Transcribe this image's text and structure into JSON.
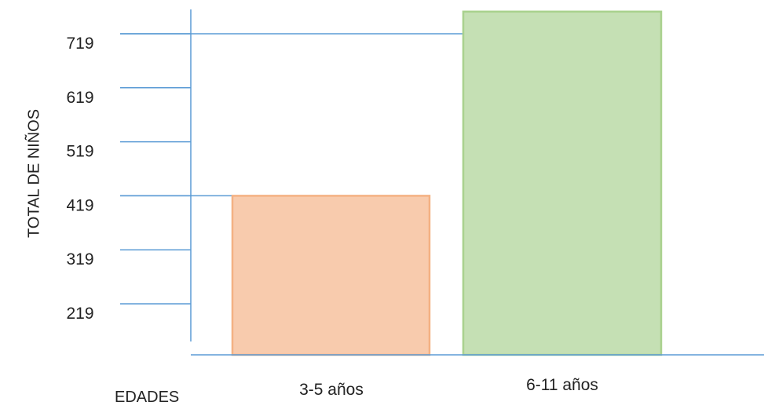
{
  "chart_data": {
    "type": "bar",
    "categories": [
      "3-5 años",
      "6-11 años"
    ],
    "values": [
      419,
      760
    ],
    "ylabel": "TOTAL DE NIÑOS",
    "xlabel": "EDADES",
    "yticks": [
      219,
      319,
      419,
      519,
      619,
      719
    ],
    "ylim": [
      160,
      780
    ],
    "grid": false,
    "colors": {
      "axis": "#5b9bd5",
      "bar_fills": [
        "#f8cbad",
        "#c5e0b4"
      ],
      "bar_strokes": [
        "#f4b183",
        "#a9d18e"
      ]
    }
  }
}
